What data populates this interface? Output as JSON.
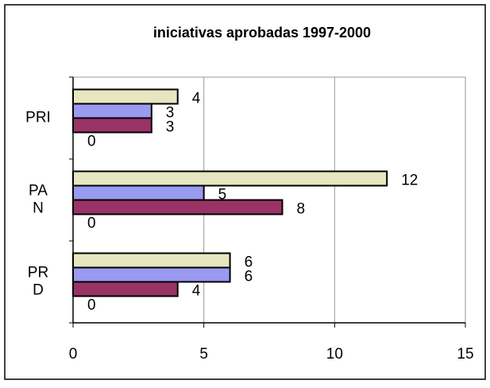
{
  "chart_data": {
    "type": "barh",
    "title": "iniciativas aprobadas 1997-2000",
    "categories": [
      "PRI",
      "PA\nN",
      "PR\nD"
    ],
    "series": [
      {
        "color": "#e6e6c0",
        "values": [
          4,
          12,
          6
        ]
      },
      {
        "color": "#9a9af0",
        "values": [
          3,
          5,
          6
        ]
      },
      {
        "color": "#993366",
        "values": [
          3,
          8,
          4
        ]
      },
      {
        "color": "#ffffff",
        "values": [
          0,
          0,
          0
        ]
      }
    ],
    "xlim": [
      0,
      15
    ],
    "xticks": [
      0,
      5,
      10,
      15
    ],
    "grid": true
  }
}
